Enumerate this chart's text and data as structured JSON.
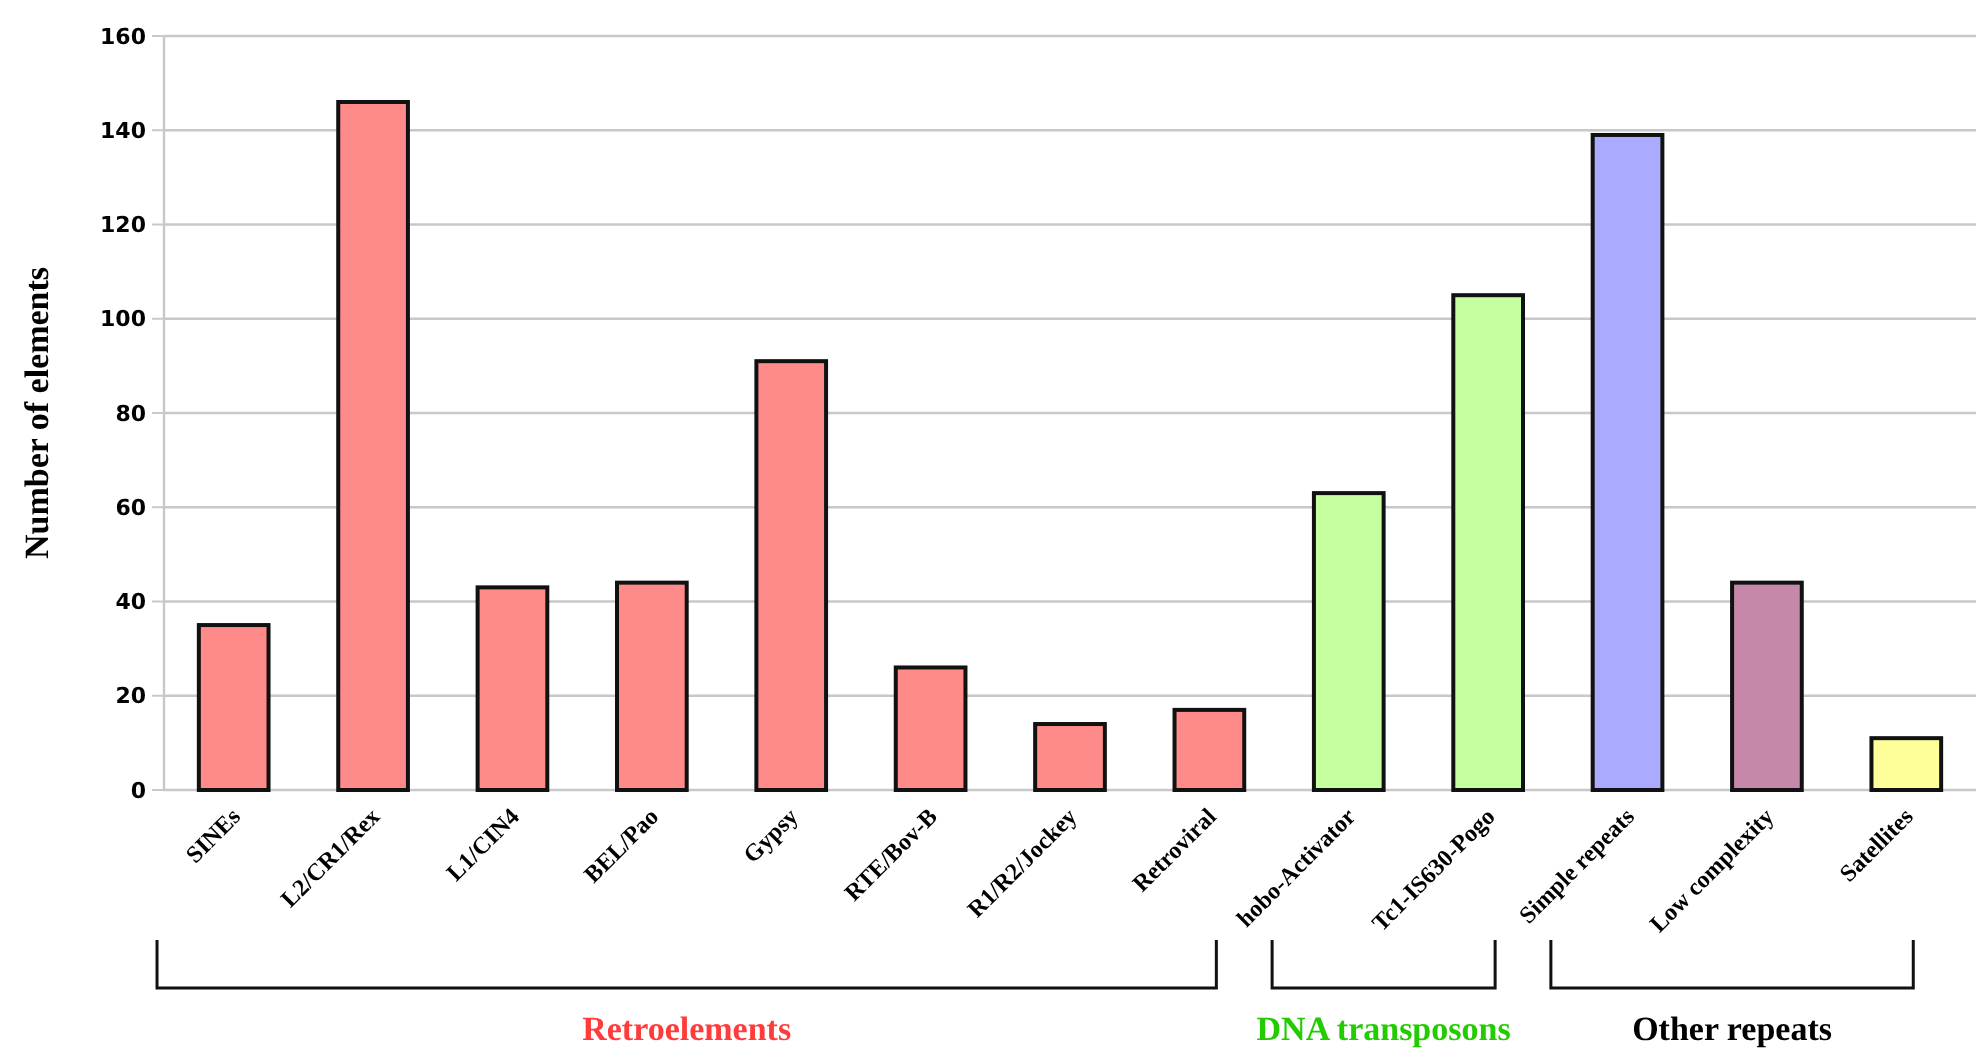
{
  "chart_data": {
    "type": "bar",
    "ylabel": "Number of elements",
    "categories": [
      "SINEs",
      "L2/CR1/Rex",
      "L1/CIN4",
      "BEL/Pao",
      "Gypsy",
      "RTE/Bov-B",
      "R1/R2/Jockey",
      "Retroviral",
      "hobo-Activator",
      "Tc1-IS630-Pogo",
      "Simple repeats",
      "Low complexity",
      "Satellites"
    ],
    "values": [
      35,
      146,
      43,
      44,
      91,
      26,
      14,
      17,
      63,
      105,
      139,
      44,
      11
    ],
    "colors": [
      "#ff8a8a",
      "#ff8a8a",
      "#ff8a8a",
      "#ff8a8a",
      "#ff8a8a",
      "#ff8a8a",
      "#ff8a8a",
      "#ff8a8a",
      "#c6ffa0",
      "#c6ffa0",
      "#aaaaff",
      "#c588a8",
      "#ffff99"
    ],
    "annotations": [
      "Retroelements",
      "DNA transposons",
      "Other repeats"
    ],
    "ylim": [
      0,
      160
    ],
    "yticks": [
      0,
      20,
      40,
      60,
      80,
      100,
      120,
      140,
      160
    ],
    "grid": "y"
  }
}
